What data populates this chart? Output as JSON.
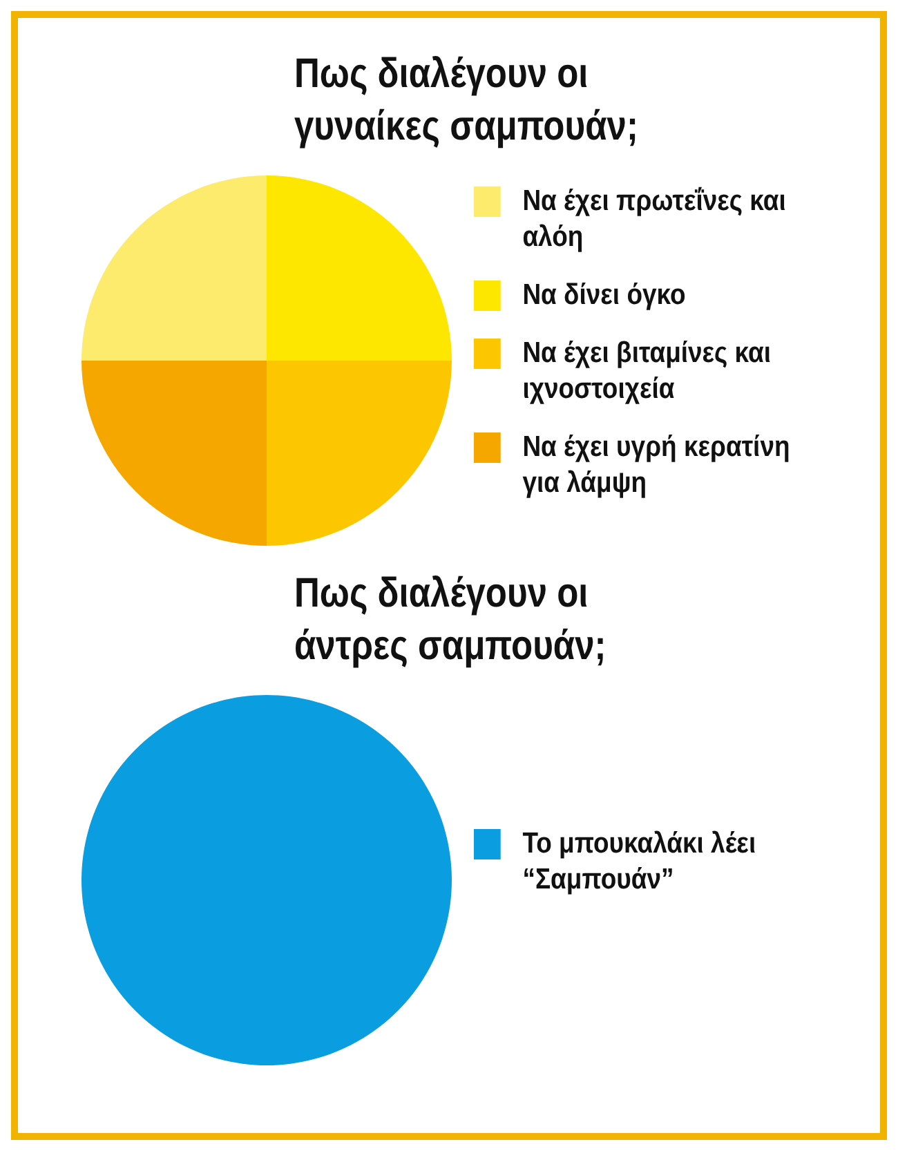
{
  "chart_data": [
    {
      "type": "pie",
      "title": "Πως διαλέγουν οι γυναίκες σαμπουάν;",
      "categories": [
        "Να έχει πρωτεΐνες και αλόη",
        "Να δίνει όγκο",
        "Να έχει βιταμίνες και ιχνοστοιχεία",
        "Να έχει υγρή κερατίνη για λάμψη"
      ],
      "values": [
        25,
        25,
        25,
        25
      ],
      "colors": [
        "#fdeb6e",
        "#fde600",
        "#fdc700",
        "#f5a700"
      ],
      "legend": "right"
    },
    {
      "type": "pie",
      "title": "Πως διαλέγουν οι άντρες σαμπουάν;",
      "categories": [
        "Το μπουκαλάκι λέει “Σαμπουάν”"
      ],
      "values": [
        100
      ],
      "colors": [
        "#0a9ee0"
      ],
      "legend": "right"
    }
  ]
}
